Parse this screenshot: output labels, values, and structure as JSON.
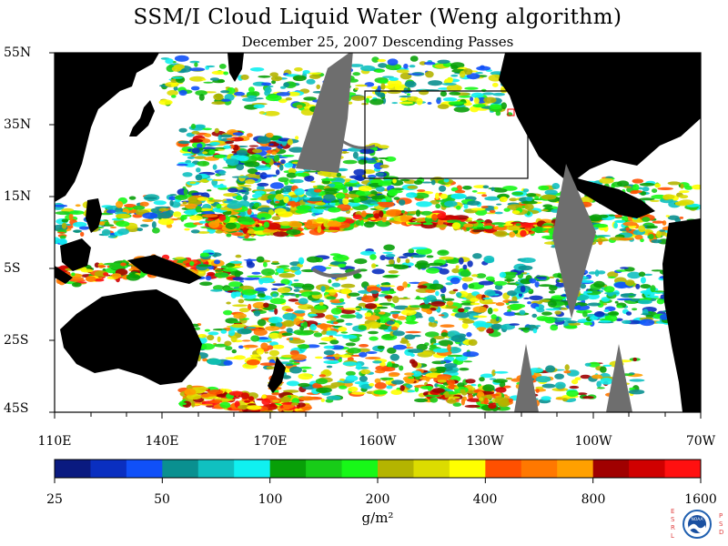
{
  "title": "SSM/I Cloud Liquid Water (Weng algorithm)",
  "subtitle": "December 25, 2007  Descending Passes",
  "lat_labels": [
    "55N",
    "35N",
    "15N",
    "5S",
    "25S",
    "45S"
  ],
  "lon_labels": [
    "110E",
    "140E",
    "170E",
    "160W",
    "130W",
    "100W",
    "70W"
  ],
  "colorbar": {
    "labels": [
      "25",
      "50",
      "100",
      "200",
      "400",
      "800",
      "1600"
    ],
    "units": "g/m²",
    "colors": [
      "#0a1a80",
      "#0a2fc0",
      "#1050f8",
      "#0a9090",
      "#10c0c0",
      "#10f0f0",
      "#08a008",
      "#18cc18",
      "#18f818",
      "#b4b400",
      "#dcdc00",
      "#ffff00",
      "#ff5000",
      "#ff7800",
      "#ffa000",
      "#a00000",
      "#d00000",
      "#ff1010"
    ]
  },
  "colors": {
    "ocean_clear": "#ffffff",
    "land": "#000000",
    "no_data": "#6e6e6e",
    "box_outline": "#000000",
    "small_box": "#ff0000"
  },
  "logo": {
    "left_letters": "ESRL",
    "right_letters": "PSD",
    "badge_text": "NOAA",
    "letter_color": "#e04040"
  }
}
